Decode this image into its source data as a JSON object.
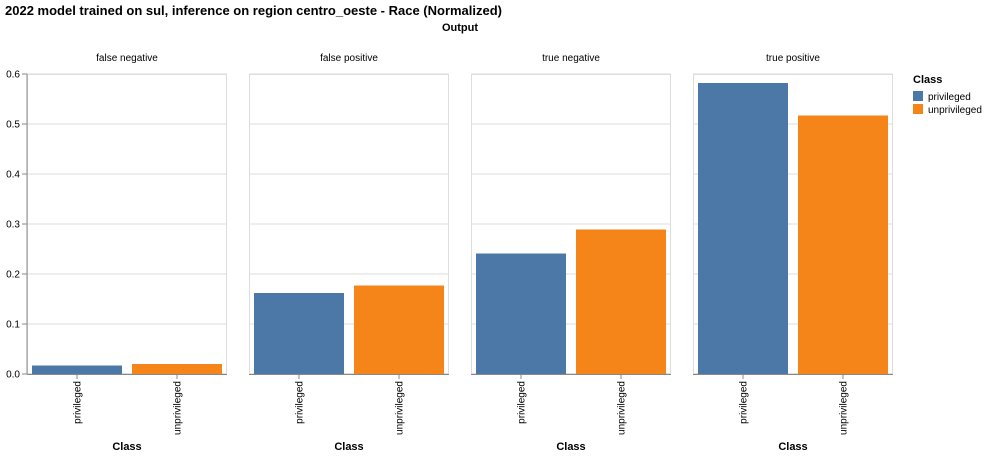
{
  "chart_data": {
    "type": "bar",
    "title": "2022 model trained on sul, inference on region centro_oeste - Race (Normalized)",
    "column_title": "Output",
    "xlabel": "Class",
    "ylim": [
      0,
      0.6
    ],
    "yticks": [
      "0.0",
      "0.1",
      "0.2",
      "0.3",
      "0.4",
      "0.5",
      "0.6"
    ],
    "grid": true,
    "legend": {
      "title": "Class",
      "position": "top-right",
      "items": [
        {
          "label": "privileged",
          "color": "#4c78a8"
        },
        {
          "label": "unprivileged",
          "color": "#f58518"
        }
      ]
    },
    "categories": [
      "privileged",
      "unprivileged"
    ],
    "facets": [
      {
        "name": "false negative",
        "values": [
          0.017,
          0.02
        ]
      },
      {
        "name": "false positive",
        "values": [
          0.162,
          0.177
        ]
      },
      {
        "name": "true negative",
        "values": [
          0.241,
          0.289
        ]
      },
      {
        "name": "true positive",
        "values": [
          0.582,
          0.517
        ]
      }
    ]
  }
}
